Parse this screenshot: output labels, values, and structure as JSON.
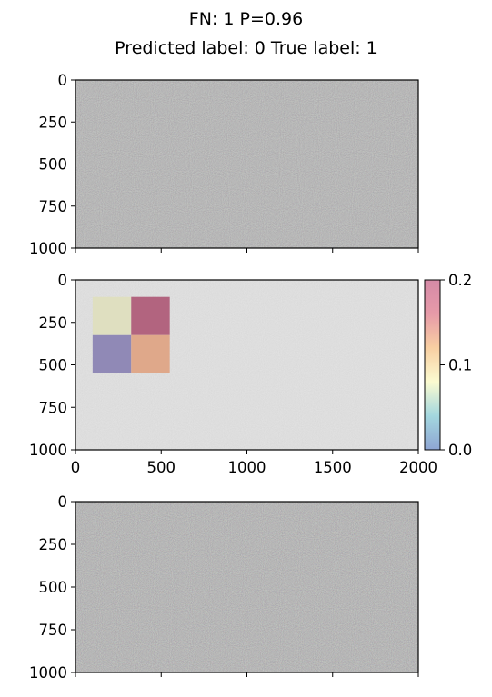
{
  "title_line1": "FN: 1 P=0.96",
  "title_line2": "Predicted label: 0 True label: 1",
  "chart_data": [
    {
      "type": "heatmap",
      "panel": "input image",
      "xlim": [
        0,
        2000
      ],
      "ylim": [
        1000,
        0
      ],
      "yticks": [
        0,
        250,
        500,
        750,
        1000
      ],
      "xticks": [
        0,
        500,
        1000,
        1500,
        2000
      ],
      "xtick_labels_shown": false,
      "fill": "gray noise",
      "mean_color": "#7a7a7a"
    },
    {
      "type": "heatmap",
      "panel": "attribution overlay",
      "xlim": [
        0,
        2000
      ],
      "ylim": [
        1000,
        0
      ],
      "yticks": [
        0,
        250,
        500,
        750,
        1000
      ],
      "xticks": [
        0,
        500,
        1000,
        1500,
        2000
      ],
      "xtick_labels_shown": true,
      "fill": "light gray noise",
      "mean_color": "#b9b9b9",
      "cells": [
        {
          "x": [
            100,
            325
          ],
          "y": [
            100,
            325
          ],
          "value": 0.09,
          "color": "#dfdfc0"
        },
        {
          "x": [
            325,
            550
          ],
          "y": [
            100,
            325
          ],
          "value": 0.2,
          "color": "#b2647f"
        },
        {
          "x": [
            100,
            325
          ],
          "y": [
            325,
            550
          ],
          "value": 0.0,
          "color": "#9089b6"
        },
        {
          "x": [
            325,
            550
          ],
          "y": [
            325,
            550
          ],
          "value": 0.15,
          "color": "#dfa88a"
        }
      ],
      "colorbar": {
        "range": [
          0.0,
          0.2
        ],
        "ticks": [
          0.0,
          0.1,
          0.2
        ],
        "tick_labels": [
          "0.0",
          "0.1",
          "0.2"
        ],
        "stops": [
          "#8ea5d3",
          "#a3d7df",
          "#fbfbd0",
          "#f8cfa2",
          "#e69aa8",
          "#d58aa7"
        ]
      }
    },
    {
      "type": "heatmap",
      "panel": "reconstruction",
      "xlim": [
        0,
        2000
      ],
      "ylim": [
        1000,
        0
      ],
      "yticks": [
        0,
        250,
        500,
        750,
        1000
      ],
      "xticks": [
        0,
        500,
        1000,
        1500,
        2000
      ],
      "xtick_labels_shown": false,
      "fill": "gray noise",
      "mean_color": "#777777"
    }
  ]
}
